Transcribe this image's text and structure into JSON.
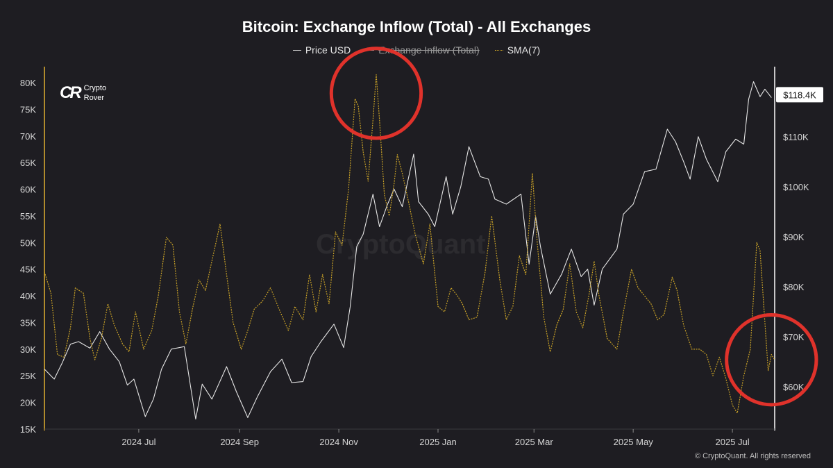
{
  "chart_data": {
    "type": "line",
    "title": "Bitcoin: Exchange Inflow (Total) - All Exchanges",
    "legend": [
      {
        "name": "Price USD",
        "color": "#e6e6e6",
        "style": "solid",
        "visible": true
      },
      {
        "name": "Exchange Inflow (Total)",
        "color": "#9a9a9a",
        "style": "solid",
        "visible": false
      },
      {
        "name": "SMA(7)",
        "color": "#c9a227",
        "style": "dotted",
        "visible": true
      }
    ],
    "legend_position": "top-center",
    "x_range": [
      "2024-05-04",
      "2025-07-27"
    ],
    "x_ticks": [
      {
        "date": "2024-07-01",
        "label": "2024 Jul"
      },
      {
        "date": "2024-09-01",
        "label": "2024 Sep"
      },
      {
        "date": "2024-11-01",
        "label": "2024 Nov"
      },
      {
        "date": "2025-01-01",
        "label": "2025 Jan"
      },
      {
        "date": "2025-03-01",
        "label": "2025 Mar"
      },
      {
        "date": "2025-05-01",
        "label": "2025 May"
      },
      {
        "date": "2025-07-01",
        "label": "2025 Jul"
      }
    ],
    "y_left": {
      "min": 15000,
      "max": 83000,
      "ticks": [
        15000,
        20000,
        25000,
        30000,
        35000,
        40000,
        45000,
        50000,
        55000,
        60000,
        65000,
        70000,
        75000,
        80000
      ],
      "labels": [
        "15K",
        "20K",
        "25K",
        "30K",
        "35K",
        "40K",
        "45K",
        "50K",
        "55K",
        "60K",
        "65K",
        "70K",
        "75K",
        "80K"
      ]
    },
    "y_right": {
      "min": 51500,
      "max": 124000,
      "ticks": [
        60000,
        70000,
        80000,
        90000,
        100000,
        110000
      ],
      "labels": [
        "$60K",
        "$70K",
        "$80K",
        "$90K",
        "$100K",
        "$110K"
      ]
    },
    "last_price_label": "$118.4K",
    "last_price_value": 118400,
    "grid": false,
    "series": [
      {
        "name": "Price USD",
        "axis": "right",
        "points": [
          [
            "2024-05-04",
            63500
          ],
          [
            "2024-05-10",
            61500
          ],
          [
            "2024-05-15",
            64800
          ],
          [
            "2024-05-20",
            68500
          ],
          [
            "2024-05-25",
            69000
          ],
          [
            "2024-06-01",
            67700
          ],
          [
            "2024-06-07",
            71000
          ],
          [
            "2024-06-13",
            67500
          ],
          [
            "2024-06-19",
            65000
          ],
          [
            "2024-06-24",
            60300
          ],
          [
            "2024-06-28",
            61500
          ],
          [
            "2024-07-05",
            54000
          ],
          [
            "2024-07-10",
            57500
          ],
          [
            "2024-07-15",
            63500
          ],
          [
            "2024-07-21",
            67500
          ],
          [
            "2024-07-29",
            68000
          ],
          [
            "2024-08-05",
            53500
          ],
          [
            "2024-08-09",
            60500
          ],
          [
            "2024-08-15",
            57500
          ],
          [
            "2024-08-24",
            64000
          ],
          [
            "2024-08-30",
            59000
          ],
          [
            "2024-09-06",
            53800
          ],
          [
            "2024-09-12",
            58000
          ],
          [
            "2024-09-20",
            63000
          ],
          [
            "2024-09-27",
            65500
          ],
          [
            "2024-10-03",
            60800
          ],
          [
            "2024-10-10",
            61000
          ],
          [
            "2024-10-15",
            66000
          ],
          [
            "2024-10-21",
            69000
          ],
          [
            "2024-10-29",
            72500
          ],
          [
            "2024-11-04",
            67800
          ],
          [
            "2024-11-08",
            76000
          ],
          [
            "2024-11-12",
            88000
          ],
          [
            "2024-11-16",
            90500
          ],
          [
            "2024-11-22",
            98500
          ],
          [
            "2024-11-26",
            92000
          ],
          [
            "2024-12-01",
            96500
          ],
          [
            "2024-12-05",
            99500
          ],
          [
            "2024-12-10",
            96000
          ],
          [
            "2024-12-17",
            106500
          ],
          [
            "2024-12-20",
            97000
          ],
          [
            "2024-12-26",
            94500
          ],
          [
            "2024-12-30",
            92000
          ],
          [
            "2025-01-06",
            102000
          ],
          [
            "2025-01-10",
            94500
          ],
          [
            "2025-01-15",
            100000
          ],
          [
            "2025-01-20",
            108000
          ],
          [
            "2025-01-27",
            102000
          ],
          [
            "2025-02-01",
            101500
          ],
          [
            "2025-02-05",
            97500
          ],
          [
            "2025-02-12",
            96500
          ],
          [
            "2025-02-21",
            98500
          ],
          [
            "2025-02-26",
            84500
          ],
          [
            "2025-03-02",
            94000
          ],
          [
            "2025-03-05",
            88000
          ],
          [
            "2025-03-11",
            78500
          ],
          [
            "2025-03-18",
            82500
          ],
          [
            "2025-03-24",
            87500
          ],
          [
            "2025-03-30",
            82000
          ],
          [
            "2025-04-03",
            83500
          ],
          [
            "2025-04-07",
            76300
          ],
          [
            "2025-04-12",
            83500
          ],
          [
            "2025-04-21",
            87500
          ],
          [
            "2025-04-25",
            94500
          ],
          [
            "2025-05-01",
            96500
          ],
          [
            "2025-05-08",
            103000
          ],
          [
            "2025-05-15",
            103500
          ],
          [
            "2025-05-22",
            111500
          ],
          [
            "2025-05-27",
            109000
          ],
          [
            "2025-06-01",
            105000
          ],
          [
            "2025-06-05",
            101500
          ],
          [
            "2025-06-10",
            110000
          ],
          [
            "2025-06-15",
            105500
          ],
          [
            "2025-06-22",
            101000
          ],
          [
            "2025-06-27",
            107000
          ],
          [
            "2025-07-03",
            109500
          ],
          [
            "2025-07-08",
            108500
          ],
          [
            "2025-07-11",
            117500
          ],
          [
            "2025-07-14",
            121000
          ],
          [
            "2025-07-18",
            118000
          ],
          [
            "2025-07-21",
            119500
          ],
          [
            "2025-07-25",
            117800
          ]
        ]
      },
      {
        "name": "SMA(7)",
        "axis": "left",
        "points": [
          [
            "2024-05-04",
            44500
          ],
          [
            "2024-05-08",
            40500
          ],
          [
            "2024-05-12",
            29000
          ],
          [
            "2024-05-16",
            28500
          ],
          [
            "2024-05-20",
            34000
          ],
          [
            "2024-05-23",
            41500
          ],
          [
            "2024-05-28",
            40500
          ],
          [
            "2024-06-01",
            32000
          ],
          [
            "2024-06-04",
            28000
          ],
          [
            "2024-06-08",
            32000
          ],
          [
            "2024-06-12",
            38500
          ],
          [
            "2024-06-16",
            34500
          ],
          [
            "2024-06-21",
            31000
          ],
          [
            "2024-06-25",
            29500
          ],
          [
            "2024-06-29",
            37000
          ],
          [
            "2024-07-04",
            30000
          ],
          [
            "2024-07-09",
            33500
          ],
          [
            "2024-07-13",
            40000
          ],
          [
            "2024-07-18",
            51000
          ],
          [
            "2024-07-22",
            49500
          ],
          [
            "2024-07-26",
            37000
          ],
          [
            "2024-07-30",
            31000
          ],
          [
            "2024-08-03",
            37500
          ],
          [
            "2024-08-07",
            43000
          ],
          [
            "2024-08-11",
            41000
          ],
          [
            "2024-08-16",
            48000
          ],
          [
            "2024-08-20",
            53500
          ],
          [
            "2024-08-24",
            44000
          ],
          [
            "2024-08-28",
            35000
          ],
          [
            "2024-09-02",
            30000
          ],
          [
            "2024-09-06",
            33500
          ],
          [
            "2024-09-10",
            37500
          ],
          [
            "2024-09-15",
            39000
          ],
          [
            "2024-09-20",
            41500
          ],
          [
            "2024-09-26",
            37000
          ],
          [
            "2024-10-01",
            33500
          ],
          [
            "2024-10-05",
            38000
          ],
          [
            "2024-10-10",
            35500
          ],
          [
            "2024-10-14",
            44000
          ],
          [
            "2024-10-18",
            37000
          ],
          [
            "2024-10-22",
            44000
          ],
          [
            "2024-10-26",
            38500
          ],
          [
            "2024-10-30",
            52000
          ],
          [
            "2024-11-03",
            49500
          ],
          [
            "2024-11-07",
            60000
          ],
          [
            "2024-11-11",
            77000
          ],
          [
            "2024-11-13",
            75500
          ],
          [
            "2024-11-16",
            67000
          ],
          [
            "2024-11-19",
            61500
          ],
          [
            "2024-11-22",
            73000
          ],
          [
            "2024-11-24",
            81500
          ],
          [
            "2024-11-26",
            73000
          ],
          [
            "2024-11-29",
            59000
          ],
          [
            "2024-12-02",
            55000
          ],
          [
            "2024-12-05",
            61000
          ],
          [
            "2024-12-07",
            66500
          ],
          [
            "2024-12-10",
            63000
          ],
          [
            "2024-12-14",
            57500
          ],
          [
            "2024-12-18",
            51500
          ],
          [
            "2024-12-23",
            46000
          ],
          [
            "2024-12-27",
            53500
          ],
          [
            "2025-01-01",
            38000
          ],
          [
            "2025-01-05",
            37000
          ],
          [
            "2025-01-09",
            41500
          ],
          [
            "2025-01-13",
            40000
          ],
          [
            "2025-01-16",
            38500
          ],
          [
            "2025-01-20",
            35500
          ],
          [
            "2025-01-25",
            36000
          ],
          [
            "2025-01-30",
            44500
          ],
          [
            "2025-02-03",
            55000
          ],
          [
            "2025-02-08",
            43000
          ],
          [
            "2025-02-12",
            35500
          ],
          [
            "2025-02-16",
            38000
          ],
          [
            "2025-02-20",
            47500
          ],
          [
            "2025-02-24",
            44000
          ],
          [
            "2025-02-28",
            63000
          ],
          [
            "2025-03-03",
            50000
          ],
          [
            "2025-03-07",
            36000
          ],
          [
            "2025-03-11",
            29500
          ],
          [
            "2025-03-15",
            34500
          ],
          [
            "2025-03-19",
            37500
          ],
          [
            "2025-03-23",
            46000
          ],
          [
            "2025-03-27",
            37000
          ],
          [
            "2025-03-31",
            34000
          ],
          [
            "2025-04-04",
            40500
          ],
          [
            "2025-04-07",
            46500
          ],
          [
            "2025-04-10",
            40000
          ],
          [
            "2025-04-15",
            32000
          ],
          [
            "2025-04-21",
            30000
          ],
          [
            "2025-04-25",
            37000
          ],
          [
            "2025-04-30",
            45000
          ],
          [
            "2025-05-04",
            41500
          ],
          [
            "2025-05-08",
            40000
          ],
          [
            "2025-05-12",
            38500
          ],
          [
            "2025-05-16",
            35500
          ],
          [
            "2025-05-20",
            36500
          ],
          [
            "2025-05-25",
            43500
          ],
          [
            "2025-05-28",
            41000
          ],
          [
            "2025-06-01",
            34500
          ],
          [
            "2025-06-06",
            30000
          ],
          [
            "2025-06-11",
            30000
          ],
          [
            "2025-06-15",
            29000
          ],
          [
            "2025-06-19",
            25000
          ],
          [
            "2025-06-23",
            28500
          ],
          [
            "2025-06-27",
            24500
          ],
          [
            "2025-07-01",
            19500
          ],
          [
            "2025-07-04",
            18000
          ],
          [
            "2025-07-08",
            25000
          ],
          [
            "2025-07-12",
            30000
          ],
          [
            "2025-07-16",
            50000
          ],
          [
            "2025-07-18",
            48500
          ],
          [
            "2025-07-21",
            35000
          ],
          [
            "2025-07-23",
            26000
          ],
          [
            "2025-07-25",
            29000
          ],
          [
            "2025-07-27",
            28000
          ]
        ]
      }
    ],
    "annotations": [
      {
        "shape": "circle",
        "color": "#e0322b",
        "date": "2024-11-24",
        "value": 78000,
        "axis": "left",
        "r_days": 8
      },
      {
        "shape": "circle",
        "color": "#e0322b",
        "date": "2025-07-25",
        "value": 28000,
        "axis": "left",
        "r_days": 8
      }
    ]
  },
  "branding": {
    "logo_mark": "CR",
    "logo_line1": "Crypto",
    "logo_line2": "Rover",
    "watermark": "CryptoQuant",
    "copyright": "© CryptoQuant. All rights reserved"
  },
  "colors": {
    "background": "#1e1d22",
    "price": "#e6e6e6",
    "sma": "#c9a227",
    "left_axis": "#e0b030",
    "right_axis": "#ffffff",
    "annotation": "#e0322b"
  }
}
